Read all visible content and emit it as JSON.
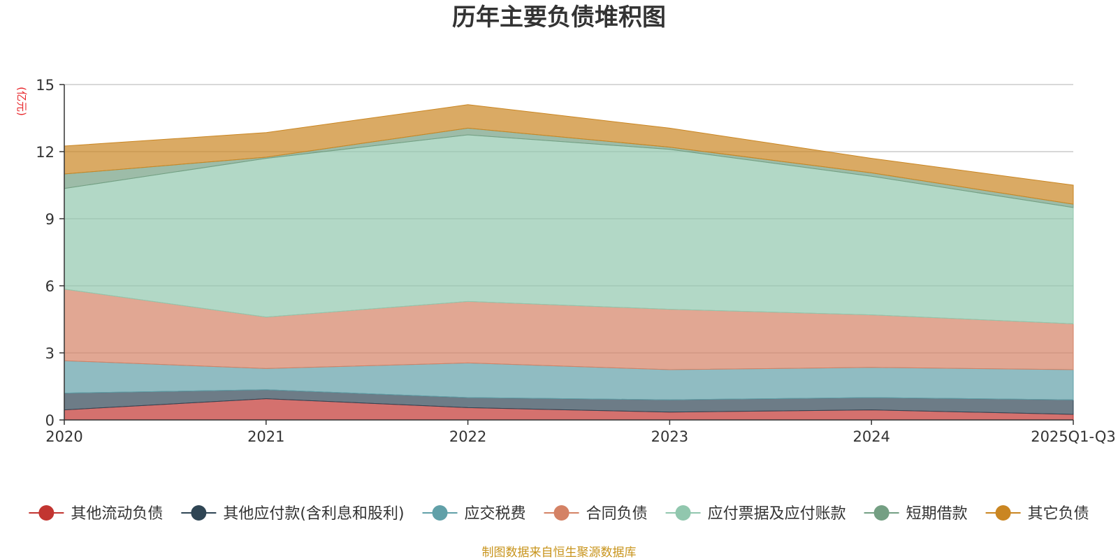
{
  "chart_data": {
    "type": "area",
    "stacked": true,
    "title": "历年主要负债堆积图",
    "unit_label": "(亿元)",
    "x": [
      "2020",
      "2021",
      "2022",
      "2023",
      "2024",
      "2025Q1-Q3"
    ],
    "ylim": [
      0,
      15
    ],
    "yticks": [
      "0",
      "3",
      "6",
      "9",
      "12",
      "15"
    ],
    "grid": true,
    "legend_position": "bottom",
    "series": [
      {
        "name": "其他流动负债",
        "color": "#c23531",
        "values": [
          0.45,
          0.95,
          0.55,
          0.35,
          0.45,
          0.25
        ]
      },
      {
        "name": "其他应付款(含利息和股利)",
        "color": "#2f4554",
        "values": [
          0.75,
          0.4,
          0.45,
          0.55,
          0.55,
          0.65
        ]
      },
      {
        "name": "应交税费",
        "color": "#61a0a8",
        "values": [
          1.45,
          0.95,
          1.55,
          1.35,
          1.35,
          1.35
        ]
      },
      {
        "name": "合同负债",
        "color": "#d48265",
        "values": [
          3.2,
          2.3,
          2.75,
          2.7,
          2.35,
          2.05
        ]
      },
      {
        "name": "应付票据及应付账款",
        "color": "#91c7ae",
        "values": [
          4.5,
          7.1,
          7.45,
          7.15,
          6.2,
          5.2
        ]
      },
      {
        "name": "短期借款",
        "color": "#749f83",
        "values": [
          0.65,
          0.05,
          0.3,
          0.1,
          0.15,
          0.15
        ]
      },
      {
        "name": "其它负债",
        "color": "#ca8622",
        "values": [
          1.25,
          1.1,
          1.05,
          0.85,
          0.65,
          0.85
        ]
      }
    ]
  },
  "footer": {
    "source": "制图数据来自恒生聚源数据库"
  }
}
